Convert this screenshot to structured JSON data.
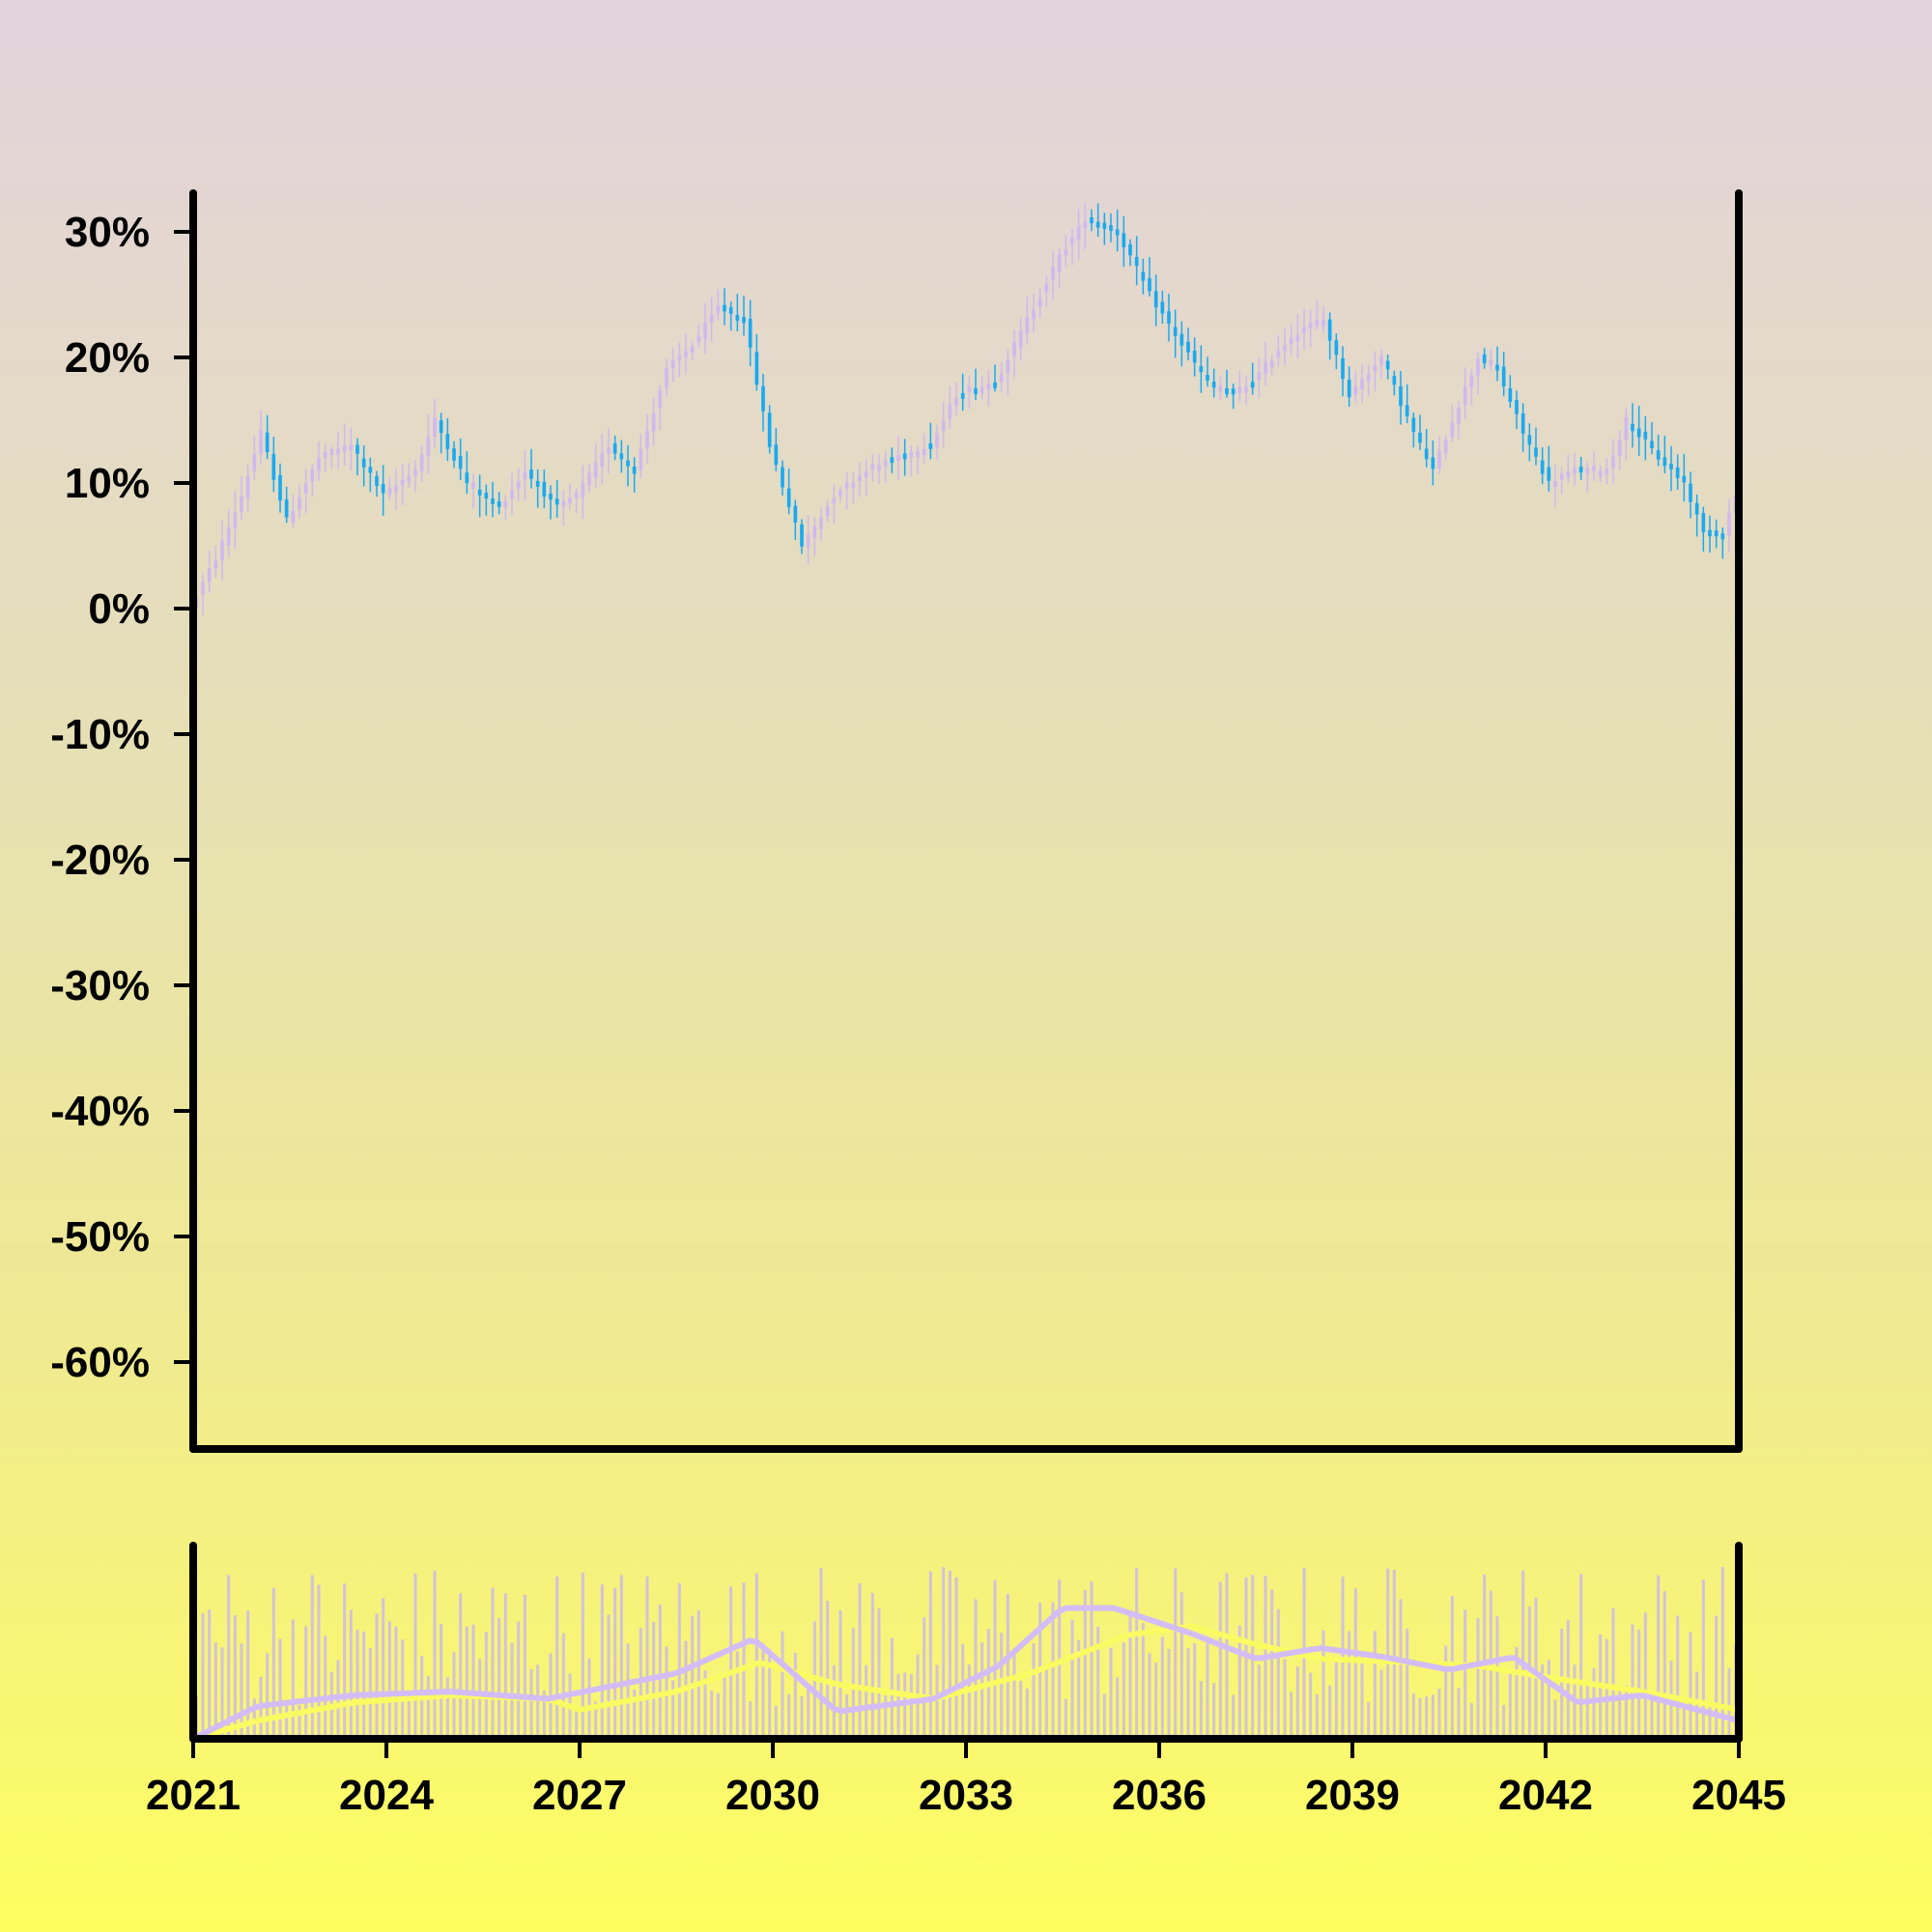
{
  "chart_data": {
    "type": "candlestick",
    "title": "",
    "xlabel": "",
    "ylabel": "",
    "y_unit": "%",
    "x_range": [
      2021,
      2045
    ],
    "ylim": [
      -65,
      33
    ],
    "y_ticks": [
      "30%",
      "20%",
      "10%",
      "0%",
      "-10%",
      "-20%",
      "-30%",
      "-40%",
      "-50%",
      "-60%"
    ],
    "y_tick_values": [
      30,
      20,
      10,
      0,
      -10,
      -20,
      -30,
      -40,
      -50,
      -60
    ],
    "x_ticks": [
      "2021",
      "2024",
      "2027",
      "2030",
      "2033",
      "2036",
      "2039",
      "2042",
      "2045"
    ],
    "x_tick_values": [
      2021,
      2024,
      2027,
      2030,
      2033,
      2036,
      2039,
      2042,
      2045
    ],
    "grid": false,
    "legend": "none",
    "price_path": [
      [
        2021.0,
        0
      ],
      [
        2021.4,
        4
      ],
      [
        2021.8,
        9
      ],
      [
        2022.1,
        14
      ],
      [
        2022.5,
        7
      ],
      [
        2023.0,
        12
      ],
      [
        2023.5,
        13
      ],
      [
        2024.0,
        9
      ],
      [
        2024.5,
        11
      ],
      [
        2024.8,
        15
      ],
      [
        2025.3,
        10
      ],
      [
        2025.8,
        8
      ],
      [
        2026.2,
        11
      ],
      [
        2026.7,
        8
      ],
      [
        2027.0,
        9
      ],
      [
        2027.5,
        13
      ],
      [
        2027.9,
        11
      ],
      [
        2028.4,
        19
      ],
      [
        2028.8,
        21
      ],
      [
        2029.2,
        24
      ],
      [
        2029.6,
        23
      ],
      [
        2030.0,
        13
      ],
      [
        2030.5,
        5
      ],
      [
        2031.0,
        9
      ],
      [
        2031.5,
        11
      ],
      [
        2032.0,
        12
      ],
      [
        2032.5,
        13
      ],
      [
        2032.9,
        17
      ],
      [
        2033.5,
        18
      ],
      [
        2034.0,
        23
      ],
      [
        2034.5,
        28
      ],
      [
        2034.9,
        31
      ],
      [
        2035.4,
        30
      ],
      [
        2035.9,
        25
      ],
      [
        2036.4,
        21
      ],
      [
        2036.8,
        18
      ],
      [
        2037.2,
        17
      ],
      [
        2037.5,
        18
      ],
      [
        2037.8,
        20
      ],
      [
        2038.2,
        22
      ],
      [
        2038.6,
        23
      ],
      [
        2039.0,
        17
      ],
      [
        2039.5,
        20
      ],
      [
        2040.0,
        14
      ],
      [
        2040.3,
        11
      ],
      [
        2040.6,
        15
      ],
      [
        2041.0,
        20
      ],
      [
        2041.3,
        19
      ],
      [
        2041.7,
        14
      ],
      [
        2042.1,
        10
      ],
      [
        2042.5,
        11
      ],
      [
        2043.0,
        11
      ],
      [
        2043.3,
        15
      ],
      [
        2043.8,
        12
      ],
      [
        2044.2,
        10
      ],
      [
        2044.5,
        6
      ],
      [
        2044.8,
        6
      ],
      [
        2045.0,
        9
      ]
    ],
    "candle_colors": {
      "up": "#d0b8f0",
      "down": "#18aaf2"
    },
    "volume": {
      "panel": "bottom",
      "bar_color": "#cdb9ea",
      "bar_range": [
        18,
        97
      ],
      "ma_fast_color": "#d4bdf6",
      "ma_slow_color": "#fafa62",
      "ma_fast_levels": [
        [
          2021.0,
          0
        ],
        [
          2022.0,
          18
        ],
        [
          2023.5,
          24
        ],
        [
          2025.0,
          26
        ],
        [
          2026.5,
          22
        ],
        [
          2028.5,
          36
        ],
        [
          2029.7,
          55
        ],
        [
          2031.0,
          15
        ],
        [
          2032.5,
          22
        ],
        [
          2033.5,
          40
        ],
        [
          2034.5,
          72
        ],
        [
          2035.3,
          72
        ],
        [
          2036.5,
          58
        ],
        [
          2037.5,
          44
        ],
        [
          2038.5,
          50
        ],
        [
          2039.5,
          45
        ],
        [
          2040.5,
          38
        ],
        [
          2041.5,
          45
        ],
        [
          2042.5,
          20
        ],
        [
          2043.5,
          24
        ],
        [
          2045.0,
          10
        ]
      ],
      "ma_slow_levels": [
        [
          2021.0,
          0
        ],
        [
          2022.0,
          10
        ],
        [
          2023.5,
          20
        ],
        [
          2025.0,
          24
        ],
        [
          2026.5,
          22
        ],
        [
          2027.0,
          16
        ],
        [
          2028.5,
          26
        ],
        [
          2029.8,
          42
        ],
        [
          2031.0,
          30
        ],
        [
          2032.5,
          22
        ],
        [
          2034.0,
          36
        ],
        [
          2035.5,
          57
        ],
        [
          2036.5,
          62
        ],
        [
          2037.5,
          52
        ],
        [
          2038.5,
          44
        ],
        [
          2040.0,
          42
        ],
        [
          2041.0,
          40
        ],
        [
          2042.0,
          34
        ],
        [
          2043.5,
          26
        ],
        [
          2045.0,
          16
        ]
      ]
    }
  }
}
